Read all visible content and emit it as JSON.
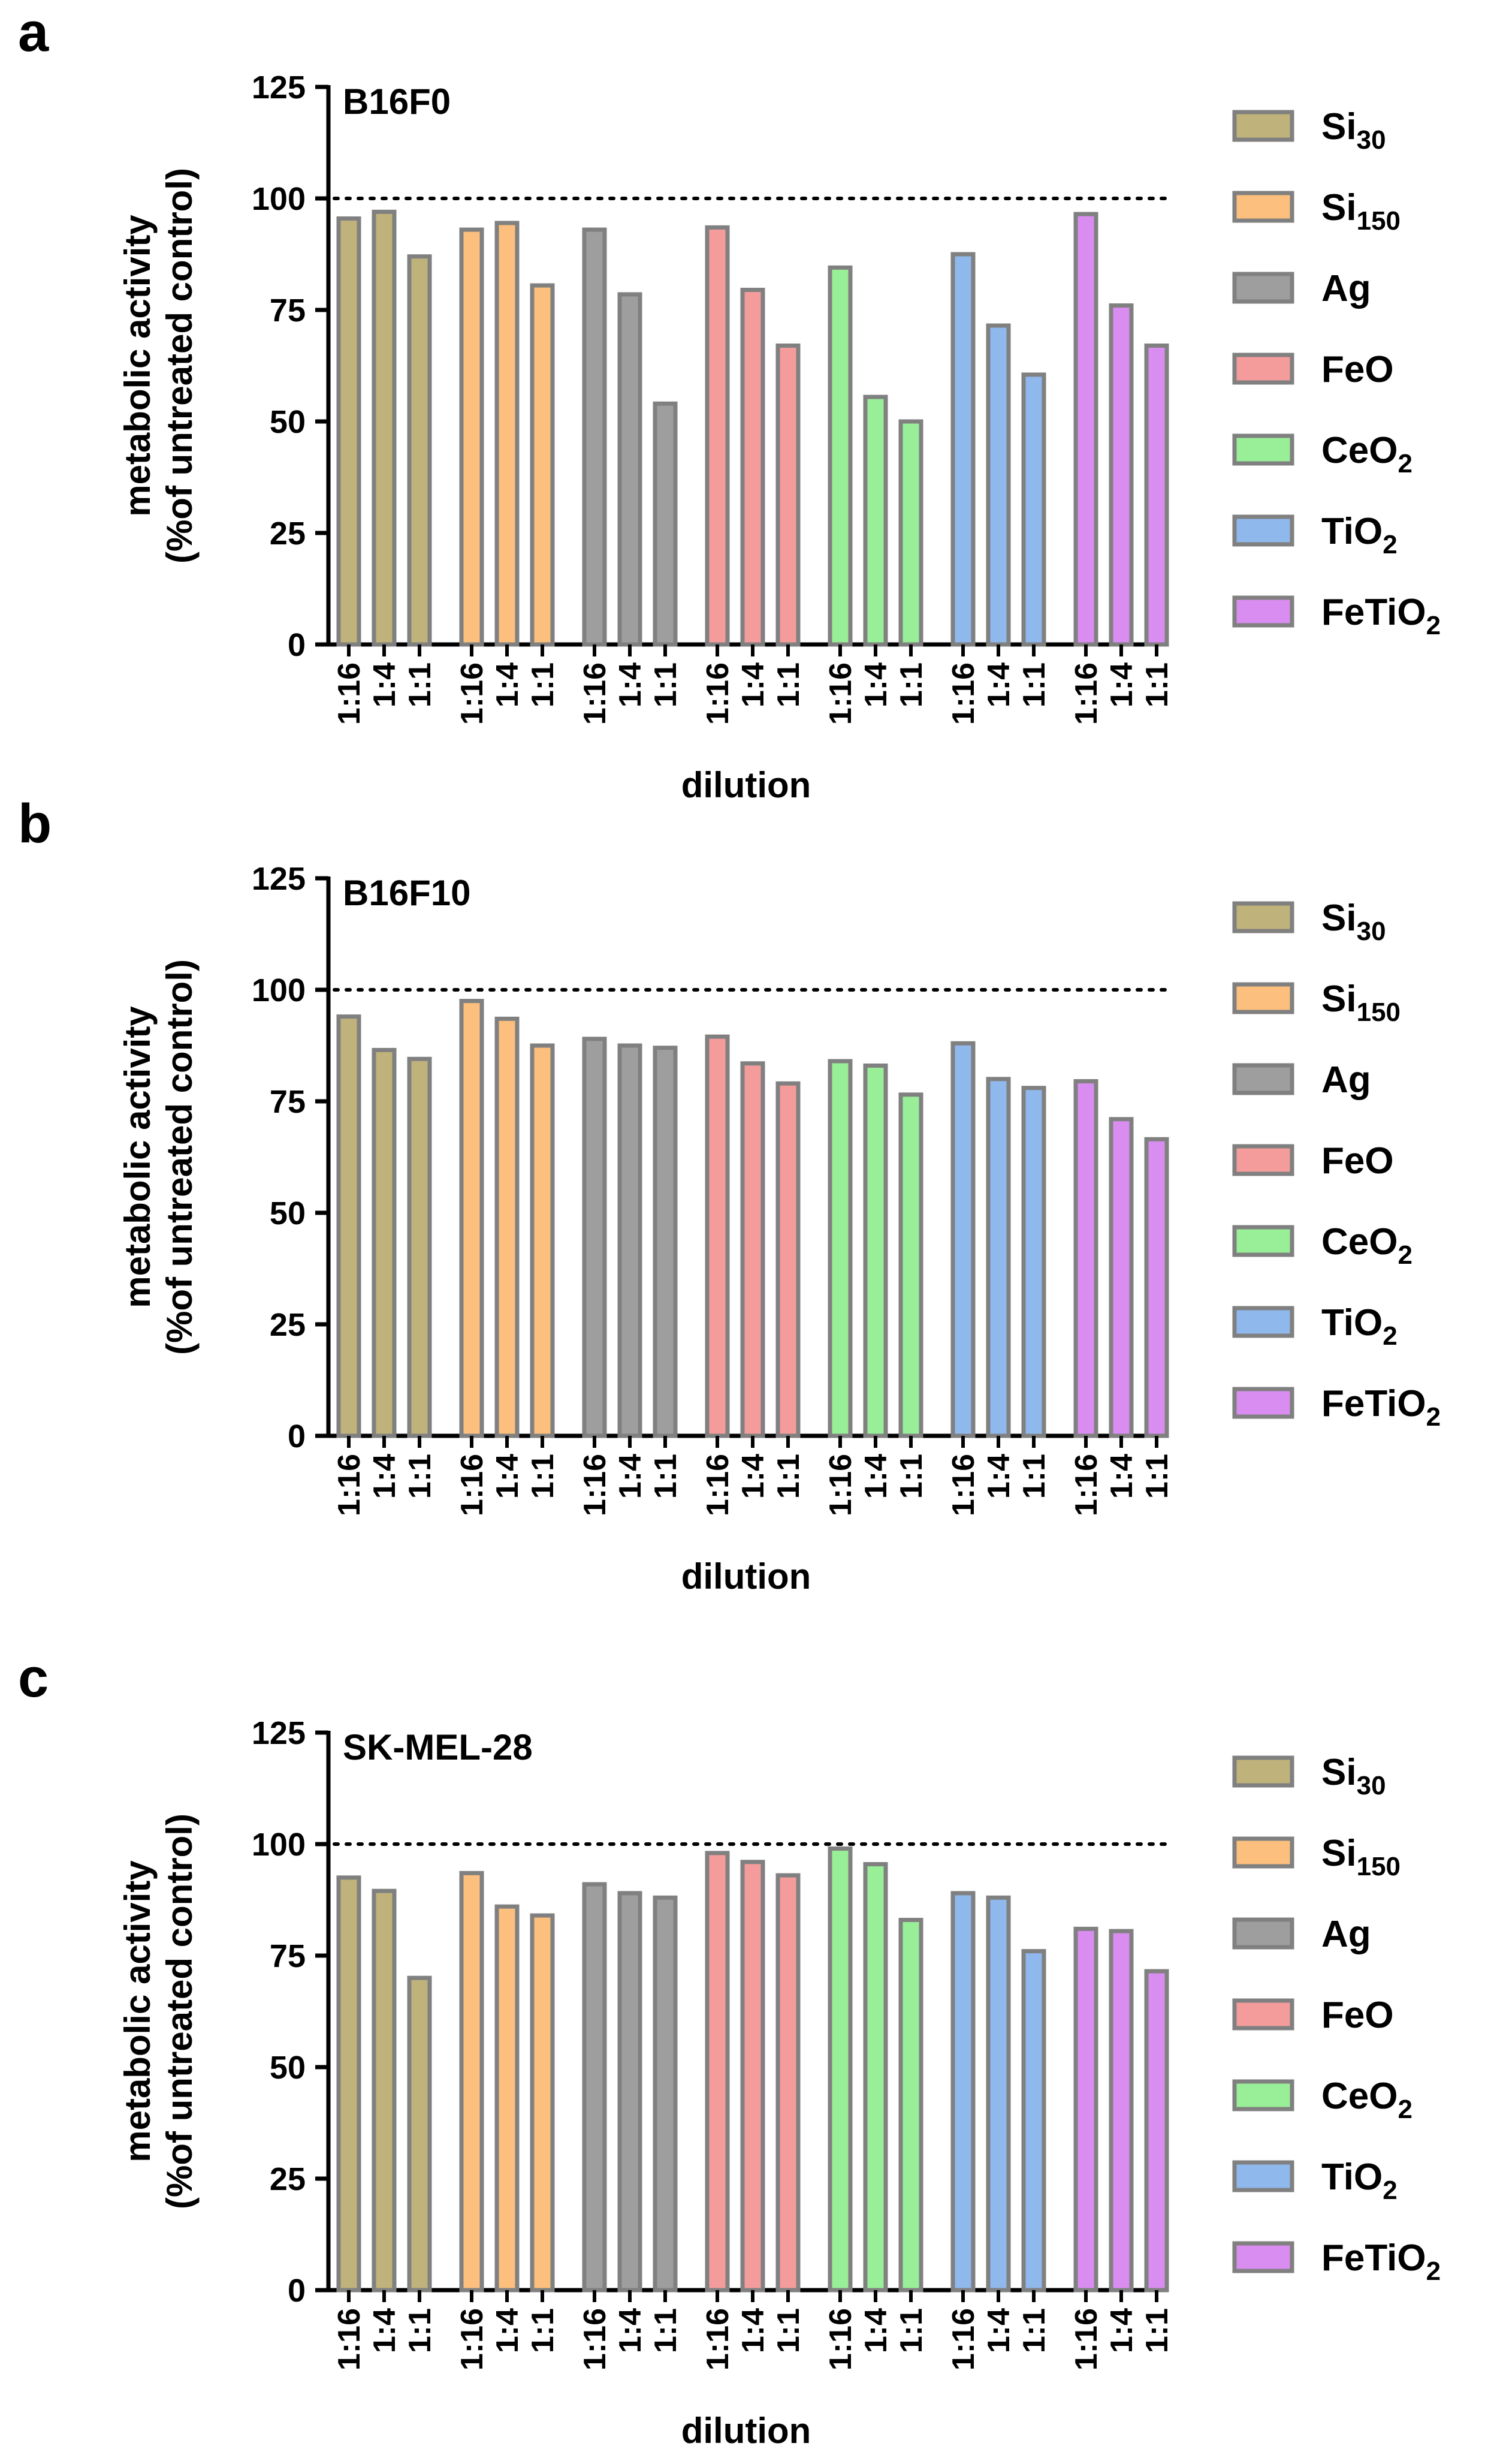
{
  "figure": {
    "panels": [
      "a",
      "b",
      "c"
    ]
  },
  "legend": [
    {
      "base": "Si",
      "sub": "30",
      "color": "#BFB27A"
    },
    {
      "base": "Si",
      "sub": "150",
      "color": "#FDBF7D"
    },
    {
      "base": "Ag",
      "sub": "",
      "color": "#9E9E9E"
    },
    {
      "base": "FeO",
      "sub": "",
      "color": "#F49C9C"
    },
    {
      "base": "CeO",
      "sub": "2",
      "color": "#98EF98"
    },
    {
      "base": "TiO",
      "sub": "2",
      "color": "#8FB8EC"
    },
    {
      "base": "FeTiO",
      "sub": "2",
      "color": "#D98DF0"
    }
  ],
  "bar_outline_color": "#808080",
  "chart_data": [
    {
      "type": "bar",
      "panel": "a",
      "title": "B16F0",
      "xlabel": "dilution",
      "ylabel": [
        "metabolic activity",
        "(%of untreated control)"
      ],
      "ylim": [
        0,
        125
      ],
      "yticks": [
        0,
        25,
        50,
        75,
        100,
        125
      ],
      "reference_line": 100,
      "groups": [
        "Si30",
        "Si150",
        "Ag",
        "FeO",
        "CeO2",
        "TiO2",
        "FeTiO2"
      ],
      "categories": [
        "1:16",
        "1:4",
        "1:1"
      ],
      "values": [
        [
          95.5,
          97,
          87
        ],
        [
          93,
          94.5,
          80.5
        ],
        [
          93,
          78.5,
          54
        ],
        [
          93.5,
          79.5,
          67
        ],
        [
          84.5,
          55.5,
          50
        ],
        [
          87.5,
          71.5,
          60.5
        ],
        [
          96.5,
          76,
          67
        ]
      ]
    },
    {
      "type": "bar",
      "panel": "b",
      "title": "B16F10",
      "xlabel": "dilution",
      "ylabel": [
        "metabolic activity",
        "(%of untreated control)"
      ],
      "ylim": [
        0,
        125
      ],
      "yticks": [
        0,
        25,
        50,
        75,
        100,
        125
      ],
      "reference_line": 100,
      "groups": [
        "Si30",
        "Si150",
        "Ag",
        "FeO",
        "CeO2",
        "TiO2",
        "FeTiO2"
      ],
      "categories": [
        "1:16",
        "1:4",
        "1:1"
      ],
      "values": [
        [
          94,
          86.5,
          84.5
        ],
        [
          97.5,
          93.5,
          87.5
        ],
        [
          89,
          87.5,
          87
        ],
        [
          89.5,
          83.5,
          79
        ],
        [
          84,
          83,
          76.5
        ],
        [
          88,
          80,
          78
        ],
        [
          79.5,
          71,
          66.5
        ]
      ]
    },
    {
      "type": "bar",
      "panel": "c",
      "title": "SK-MEL-28",
      "xlabel": "dilution",
      "ylabel": [
        "metabolic activity",
        "(%of untreated control)"
      ],
      "ylim": [
        0,
        125
      ],
      "yticks": [
        0,
        25,
        50,
        75,
        100,
        125
      ],
      "reference_line": 100,
      "groups": [
        "Si30",
        "Si150",
        "Ag",
        "FeO",
        "CeO2",
        "TiO2",
        "FeTiO2"
      ],
      "categories": [
        "1:16",
        "1:4",
        "1:1"
      ],
      "values": [
        [
          92.5,
          89.5,
          70
        ],
        [
          93.5,
          86,
          84
        ],
        [
          91,
          89,
          88
        ],
        [
          98,
          96,
          93
        ],
        [
          99,
          95.5,
          83
        ],
        [
          89,
          88,
          76
        ],
        [
          81,
          80.5,
          71.5
        ]
      ]
    }
  ]
}
